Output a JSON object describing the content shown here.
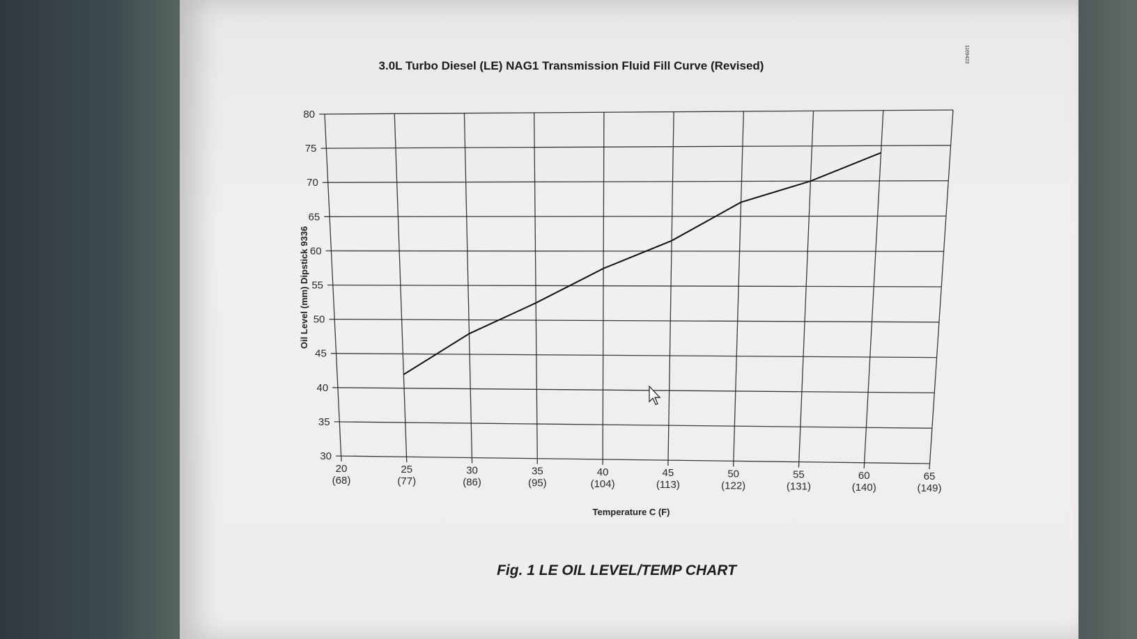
{
  "chart_data": {
    "type": "line",
    "title": "3.0L Turbo Diesel (LE) NAG1 Transmission Fluid Fill Curve (Revised)",
    "xlabel": "Temperature C (F)",
    "ylabel": "Oil Level (mm) Dipstick 9336",
    "x_ticks": [
      {
        "c": "20",
        "f": "(68)"
      },
      {
        "c": "25",
        "f": "(77)"
      },
      {
        "c": "30",
        "f": "(86)"
      },
      {
        "c": "35",
        "f": "(95)"
      },
      {
        "c": "40",
        "f": "(104)"
      },
      {
        "c": "45",
        "f": "(113)"
      },
      {
        "c": "50",
        "f": "(122)"
      },
      {
        "c": "55",
        "f": "(131)"
      },
      {
        "c": "60",
        "f": "(140)"
      },
      {
        "c": "65",
        "f": "(149)"
      }
    ],
    "y_ticks": [
      "80",
      "75",
      "70",
      "65",
      "60",
      "55",
      "50",
      "45",
      "40",
      "35",
      "30"
    ],
    "xlim": [
      20,
      65
    ],
    "ylim": [
      30,
      80
    ],
    "grid": true,
    "series": [
      {
        "x": [
          25,
          30,
          35,
          40,
          45,
          50,
          55,
          60
        ],
        "y": [
          42,
          48,
          52.5,
          57.5,
          61.5,
          67,
          70,
          74
        ]
      }
    ]
  },
  "caption": "Fig. 1 LE OIL LEVEL/TEMP CHART",
  "side_code": "1169423"
}
